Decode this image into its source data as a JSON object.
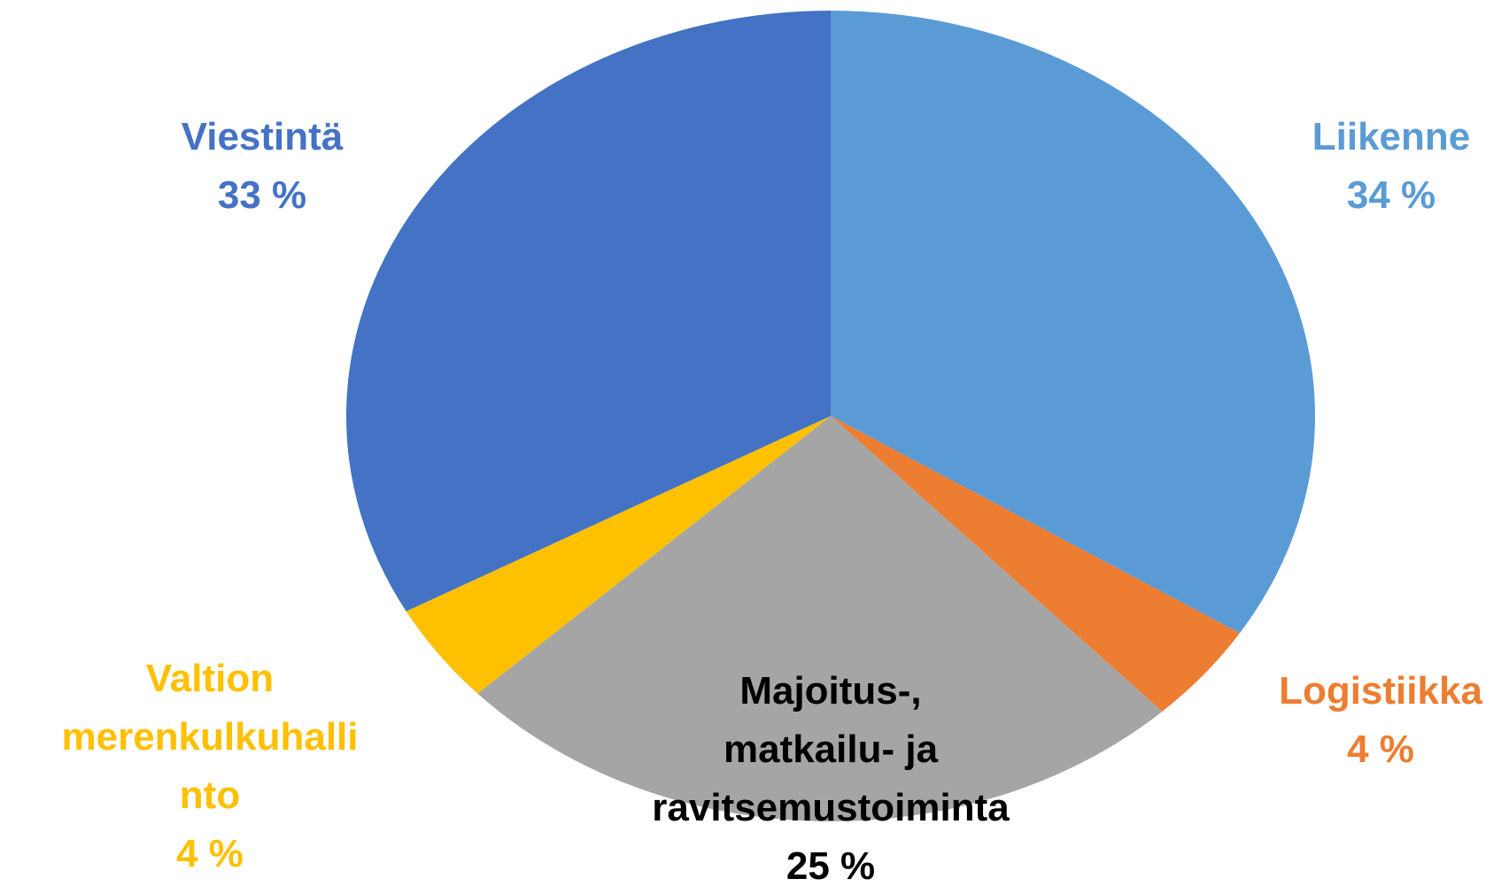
{
  "chart_data": {
    "type": "pie",
    "categories": [
      "Liikenne",
      "Logistiikka",
      "Majoitus-,\nmatkailu- ja\nravitsemustoiminta",
      "Valtion merenkulkuhallinto",
      "Viestintä"
    ],
    "values": [
      34,
      4,
      25,
      4,
      33
    ],
    "value_labels": [
      "34 %",
      "4 %",
      "25 %",
      "4 %",
      "33 %"
    ],
    "colors": [
      "#5b9bd5",
      "#ed7d31",
      "#a5a5a5",
      "#ffc000",
      "#4472c4"
    ],
    "label_colors": [
      "#5b9bd5",
      "#ed7d31",
      "#000000",
      "#ffc000",
      "#4472c4"
    ]
  }
}
